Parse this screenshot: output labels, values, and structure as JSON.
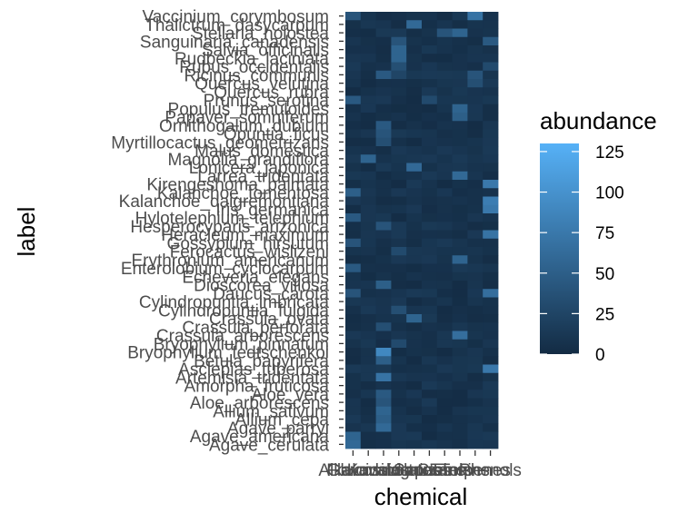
{
  "chart_data": {
    "type": "heatmap",
    "title": "",
    "xlabel": "chemical",
    "ylabel": "label",
    "x_categories": [
      "Alkaloids",
      "Flavonoids",
      "Glucosinolates",
      "Kavalactones",
      "Lignins",
      "Saponins",
      "Sterols",
      "Tannins",
      "Terpenes",
      "Phenols"
    ],
    "y_categories": [
      "Vaccinium_corymbosum",
      "Thalictrum_dasycarpum",
      "Stellaria_holostea",
      "Sanguinaria_canadensis",
      "Salvia_officinalis",
      "Rudbeckia_laciniata",
      "Rubus_occidentalis",
      "Ricinus_communis",
      "Quercus_velutina",
      "Quercus_rubra",
      "Prunus_serotina",
      "Populus_tremuloides",
      "Papaver_somniferum",
      "Ornithogalum_dubium",
      "Opuntia_ficus",
      "Myrtillocactus_geometrizans",
      "Malus_domestica",
      "Magnolia_grandiflora",
      "Lonicera_japonica",
      "Larrea_tridentata",
      "Kirengeshoma_palmata",
      "Kalanchoe_tomentosa",
      "Kalanchoe_daigremontiana",
      "Iris_germanica",
      "Hylotelephium_telephium",
      "Hesperocyparis_arizonica",
      "Heracleum_maximum",
      "Gossypium_hirsutum",
      "Ferocactus_wislizeni",
      "Erythronium_americanum",
      "Enterolobium_cyclocarpum",
      "Echeveria_elegans",
      "Dioscorea_villosa",
      "Daucus_carota",
      "Cylindropuntia_imbricata",
      "Cylindropuntia_fulgida",
      "Crassula_ovata",
      "Crassula_perforata",
      "Crassula_arborescens",
      "Bryophyllum_pinnatum",
      "Bryophyllum_fedtschenkoi",
      "Betula_papyrifera",
      "Asclepias_tuberosa",
      "Artemisia_tridentata",
      "Amorpha_fruticosa",
      "Aloe_vera",
      "Aloe_arborescens",
      "Allium_sativum",
      "Allium_cepa",
      "Agave_parryi",
      "Agave_americana",
      "Agave_cerulata"
    ],
    "visible_y_labels": [
      "Vaccinium_corymbosum",
      "Thalictrum_dasycarpum",
      "Stellaria_holostea",
      "Sanguinaria_canadensis",
      "Salvia_officinalis",
      "Rudbeckia_laciniata",
      "Rubus_occidentalis",
      "Ricinus_communis",
      "Quercus_velutina",
      "Quercus_rubra",
      "Prunus_serotina",
      "Populus_tremuloides",
      "Papaver_somniferum",
      "Ornithogalum_dubium",
      "Opuntia_ficus",
      "Myrtillocactus_geometrizans",
      "Malus_domestica",
      "Magnolia_grandiflora",
      "Lonicera_japonica",
      "Larrea_tridentata",
      "Kirengeshoma_palmata",
      "Kalanchoe_tomentosa",
      "Kalanchoe_daigremontiana",
      "Iris_germanica",
      "Hylotelephium_telephium",
      "Hesperocyparis_arizonica",
      "Heracleum_maximum",
      "Gossypium_hirsutum",
      "Ferocactus_wislizeni",
      "Erythronium_americanum",
      "Enterolobium_cyclocarpum",
      "Echeveria_elegans",
      "Dioscorea_villosa",
      "Daucus_carota",
      "Cylindropuntia_imbricata",
      "Cylindropuntia_fulgida",
      "Crassula_ovata",
      "Crassula_perforata",
      "Crassula_arborescens",
      "Bryophyllum_pinnatum",
      "Bryophyllum_fedtschenkoi",
      "Betula_papyrifera",
      "Asclepias_tuberosa",
      "Artemisia_tridentata",
      "Amorpha_fruticosa",
      "Aloe_vera",
      "Aloe_arborescens",
      "Allium_sativum",
      "Allium_cepa",
      "Agave_parryi",
      "Agave_americana",
      "Agave_cerulata"
    ],
    "hot_cells": [
      {
        "row": 0,
        "col": 0,
        "value": 40
      },
      {
        "row": 0,
        "col": 8,
        "value": 70
      },
      {
        "row": 1,
        "col": 4,
        "value": 60
      },
      {
        "row": 2,
        "col": 6,
        "value": 40
      },
      {
        "row": 2,
        "col": 7,
        "value": 55
      },
      {
        "row": 3,
        "col": 3,
        "value": 40
      },
      {
        "row": 3,
        "col": 9,
        "value": 45
      },
      {
        "row": 4,
        "col": 3,
        "value": 55
      },
      {
        "row": 5,
        "col": 3,
        "value": 55
      },
      {
        "row": 6,
        "col": 3,
        "value": 35
      },
      {
        "row": 6,
        "col": 9,
        "value": 30
      },
      {
        "row": 7,
        "col": 2,
        "value": 45
      },
      {
        "row": 7,
        "col": 3,
        "value": 25
      },
      {
        "row": 7,
        "col": 8,
        "value": 40
      },
      {
        "row": 8,
        "col": 8,
        "value": 35
      },
      {
        "row": 10,
        "col": 0,
        "value": 45
      },
      {
        "row": 10,
        "col": 5,
        "value": 30
      },
      {
        "row": 11,
        "col": 7,
        "value": 55
      },
      {
        "row": 12,
        "col": 7,
        "value": 50
      },
      {
        "row": 13,
        "col": 2,
        "value": 45
      },
      {
        "row": 14,
        "col": 2,
        "value": 40
      },
      {
        "row": 15,
        "col": 2,
        "value": 35
      },
      {
        "row": 17,
        "col": 1,
        "value": 55
      },
      {
        "row": 18,
        "col": 4,
        "value": 60
      },
      {
        "row": 19,
        "col": 7,
        "value": 60
      },
      {
        "row": 20,
        "col": 9,
        "value": 75
      },
      {
        "row": 21,
        "col": 0,
        "value": 50
      },
      {
        "row": 22,
        "col": 9,
        "value": 80
      },
      {
        "row": 23,
        "col": 9,
        "value": 75
      },
      {
        "row": 24,
        "col": 0,
        "value": 45
      },
      {
        "row": 25,
        "col": 2,
        "value": 40
      },
      {
        "row": 26,
        "col": 9,
        "value": 70
      },
      {
        "row": 27,
        "col": 0,
        "value": 40
      },
      {
        "row": 28,
        "col": 3,
        "value": 30
      },
      {
        "row": 29,
        "col": 7,
        "value": 55
      },
      {
        "row": 30,
        "col": 0,
        "value": 45
      },
      {
        "row": 32,
        "col": 2,
        "value": 50
      },
      {
        "row": 33,
        "col": 0,
        "value": 40
      },
      {
        "row": 33,
        "col": 9,
        "value": 65
      },
      {
        "row": 35,
        "col": 3,
        "value": 35
      },
      {
        "row": 36,
        "col": 4,
        "value": 55
      },
      {
        "row": 37,
        "col": 2,
        "value": 35
      },
      {
        "row": 38,
        "col": 7,
        "value": 65
      },
      {
        "row": 39,
        "col": 3,
        "value": 30
      },
      {
        "row": 40,
        "col": 2,
        "value": 90
      },
      {
        "row": 41,
        "col": 2,
        "value": 50
      },
      {
        "row": 42,
        "col": 9,
        "value": 75
      },
      {
        "row": 43,
        "col": 2,
        "value": 70
      },
      {
        "row": 45,
        "col": 2,
        "value": 45
      },
      {
        "row": 46,
        "col": 2,
        "value": 40
      },
      {
        "row": 47,
        "col": 2,
        "value": 55
      },
      {
        "row": 48,
        "col": 2,
        "value": 50
      },
      {
        "row": 49,
        "col": 2,
        "value": 60
      },
      {
        "row": 50,
        "col": 0,
        "value": 55
      },
      {
        "row": 51,
        "col": 0,
        "value": 60
      }
    ],
    "background_range": [
      2,
      14
    ],
    "legend": {
      "title": "abundance",
      "ticks": [
        125,
        100,
        75,
        50,
        25,
        0
      ],
      "range": [
        0,
        130
      ],
      "low_color": "#132b43",
      "high_color": "#56b1f7",
      "position": "right"
    }
  }
}
